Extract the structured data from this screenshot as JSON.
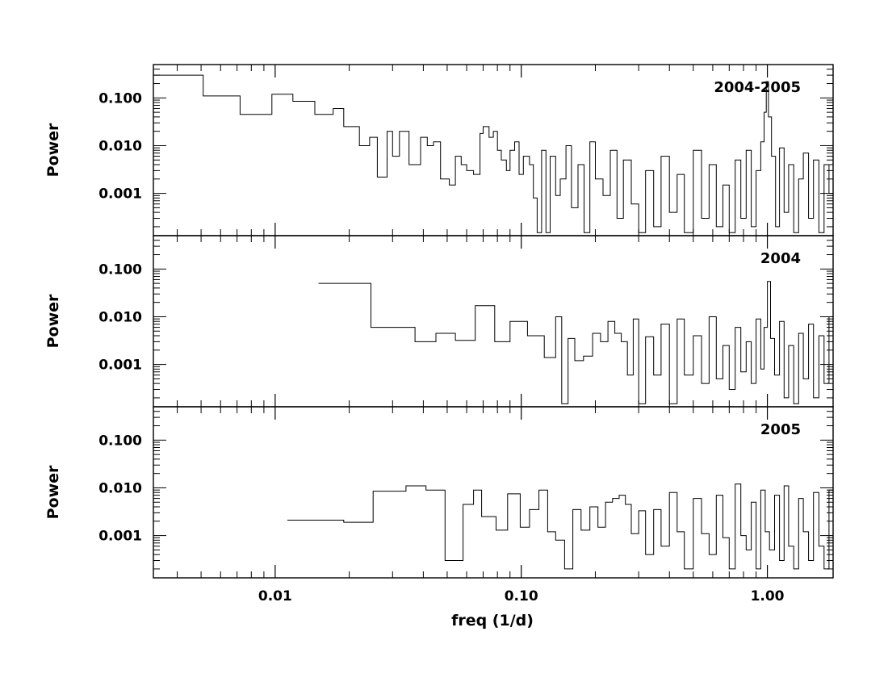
{
  "chart_data": {
    "type": "line",
    "xlabel": "freq (1/d)",
    "x_scale": "log",
    "y_scale": "log",
    "xlim": [
      0.0032,
      1.85
    ],
    "x_ticks": [
      {
        "value": 0.01,
        "label": "0.01"
      },
      {
        "value": 0.1,
        "label": "0.10"
      },
      {
        "value": 1.0,
        "label": "1.00"
      }
    ],
    "grid": false,
    "panels": [
      {
        "label": "2004-2005",
        "ylabel": "Power",
        "ylim": [
          0.00013,
          0.5
        ],
        "y_ticks": [
          {
            "value": 0.001,
            "label": "0.001"
          },
          {
            "value": 0.01,
            "label": "0.010"
          },
          {
            "value": 0.1,
            "label": "0.100"
          }
        ],
        "style": "step",
        "x": [
          0.0032,
          0.0051,
          0.0072,
          0.0097,
          0.0118,
          0.0145,
          0.0172,
          0.019,
          0.022,
          0.0242,
          0.026,
          0.0285,
          0.03,
          0.032,
          0.035,
          0.039,
          0.0415,
          0.044,
          0.047,
          0.051,
          0.054,
          0.057,
          0.06,
          0.064,
          0.068,
          0.07,
          0.074,
          0.077,
          0.08,
          0.083,
          0.087,
          0.09,
          0.094,
          0.098,
          0.102,
          0.108,
          0.112,
          0.116,
          0.121,
          0.126,
          0.131,
          0.138,
          0.144,
          0.152,
          0.16,
          0.17,
          0.18,
          0.19,
          0.2,
          0.215,
          0.23,
          0.245,
          0.26,
          0.28,
          0.3,
          0.32,
          0.345,
          0.37,
          0.4,
          0.43,
          0.46,
          0.5,
          0.54,
          0.58,
          0.62,
          0.66,
          0.7,
          0.74,
          0.78,
          0.82,
          0.86,
          0.9,
          0.94,
          0.97,
          0.99,
          1.01,
          1.04,
          1.08,
          1.12,
          1.17,
          1.22,
          1.28,
          1.34,
          1.4,
          1.47,
          1.54,
          1.62,
          1.7,
          1.78
        ],
        "values": [
          0.3,
          0.11,
          0.045,
          0.12,
          0.085,
          0.045,
          0.06,
          0.025,
          0.01,
          0.015,
          0.0022,
          0.02,
          0.006,
          0.02,
          0.004,
          0.015,
          0.01,
          0.012,
          0.002,
          0.0015,
          0.006,
          0.004,
          0.003,
          0.0025,
          0.018,
          0.025,
          0.015,
          0.02,
          0.008,
          0.005,
          0.003,
          0.008,
          0.012,
          0.0025,
          0.006,
          0.004,
          0.0008,
          0.00015,
          0.008,
          0.00015,
          0.006,
          0.0009,
          0.002,
          0.01,
          0.0005,
          0.004,
          0.00015,
          0.012,
          0.002,
          0.0009,
          0.008,
          0.0003,
          0.005,
          0.0006,
          0.00015,
          0.003,
          0.0002,
          0.006,
          0.0004,
          0.0025,
          0.00015,
          0.008,
          0.0003,
          0.004,
          0.0002,
          0.0015,
          0.00015,
          0.005,
          0.0003,
          0.008,
          0.0002,
          0.003,
          0.012,
          0.05,
          0.22,
          0.04,
          0.006,
          0.0002,
          0.009,
          0.0004,
          0.004,
          0.00015,
          0.002,
          0.007,
          0.0003,
          0.005,
          0.00015,
          0.004,
          0.001
        ]
      },
      {
        "label": "2004",
        "ylabel": "Power",
        "ylim": [
          0.00013,
          0.5
        ],
        "y_ticks": [
          {
            "value": 0.001,
            "label": "0.001"
          },
          {
            "value": 0.01,
            "label": "0.010"
          },
          {
            "value": 0.1,
            "label": "0.100"
          }
        ],
        "style": "step",
        "x": [
          0.015,
          0.0245,
          0.037,
          0.045,
          0.054,
          0.065,
          0.078,
          0.09,
          0.106,
          0.124,
          0.138,
          0.146,
          0.155,
          0.165,
          0.179,
          0.195,
          0.21,
          0.225,
          0.24,
          0.255,
          0.27,
          0.285,
          0.3,
          0.32,
          0.345,
          0.37,
          0.4,
          0.43,
          0.46,
          0.5,
          0.54,
          0.58,
          0.62,
          0.66,
          0.7,
          0.74,
          0.78,
          0.82,
          0.86,
          0.9,
          0.94,
          0.97,
          1.0,
          1.03,
          1.07,
          1.12,
          1.17,
          1.22,
          1.28,
          1.34,
          1.4,
          1.47,
          1.54,
          1.62,
          1.7,
          1.78
        ],
        "values": [
          0.05,
          0.006,
          0.003,
          0.0045,
          0.0032,
          0.017,
          0.003,
          0.008,
          0.004,
          0.0014,
          0.01,
          0.00015,
          0.0035,
          0.0012,
          0.0015,
          0.0045,
          0.003,
          0.008,
          0.0045,
          0.003,
          0.0006,
          0.009,
          0.00015,
          0.0038,
          0.0006,
          0.007,
          0.00015,
          0.009,
          0.0006,
          0.004,
          0.0004,
          0.01,
          0.0005,
          0.0025,
          0.0003,
          0.006,
          0.0007,
          0.003,
          0.0004,
          0.009,
          0.0008,
          0.006,
          0.055,
          0.0035,
          0.0006,
          0.008,
          0.0002,
          0.0025,
          0.00015,
          0.0045,
          0.0005,
          0.007,
          0.0002,
          0.004,
          0.0004,
          0.01
        ]
      },
      {
        "label": "2005",
        "ylabel": "Power",
        "ylim": [
          0.00013,
          0.5
        ],
        "y_ticks": [
          {
            "value": 0.001,
            "label": "0.001"
          },
          {
            "value": 0.01,
            "label": "0.010"
          },
          {
            "value": 0.1,
            "label": "0.100"
          }
        ],
        "style": "step",
        "x": [
          0.0112,
          0.019,
          0.025,
          0.034,
          0.041,
          0.049,
          0.058,
          0.064,
          0.069,
          0.079,
          0.088,
          0.099,
          0.108,
          0.118,
          0.128,
          0.138,
          0.15,
          0.162,
          0.175,
          0.19,
          0.205,
          0.22,
          0.235,
          0.25,
          0.265,
          0.28,
          0.3,
          0.32,
          0.345,
          0.37,
          0.4,
          0.43,
          0.46,
          0.5,
          0.54,
          0.58,
          0.62,
          0.66,
          0.7,
          0.74,
          0.78,
          0.82,
          0.86,
          0.9,
          0.94,
          0.98,
          1.02,
          1.07,
          1.12,
          1.17,
          1.22,
          1.28,
          1.34,
          1.4,
          1.47,
          1.54,
          1.62,
          1.7,
          1.78
        ],
        "values": [
          0.0021,
          0.0019,
          0.0085,
          0.011,
          0.009,
          0.0003,
          0.0045,
          0.009,
          0.0025,
          0.0013,
          0.0075,
          0.0015,
          0.0035,
          0.009,
          0.0012,
          0.0008,
          0.0002,
          0.0035,
          0.0013,
          0.004,
          0.0015,
          0.005,
          0.006,
          0.007,
          0.0045,
          0.0011,
          0.0033,
          0.0004,
          0.0035,
          0.0006,
          0.008,
          0.0012,
          0.0002,
          0.006,
          0.0011,
          0.0004,
          0.007,
          0.0009,
          0.0002,
          0.012,
          0.001,
          0.0005,
          0.005,
          0.0002,
          0.009,
          0.0012,
          0.0005,
          0.007,
          0.0003,
          0.011,
          0.0006,
          0.0002,
          0.006,
          0.0012,
          0.0003,
          0.008,
          0.0006,
          0.0002,
          0.009
        ]
      }
    ]
  }
}
